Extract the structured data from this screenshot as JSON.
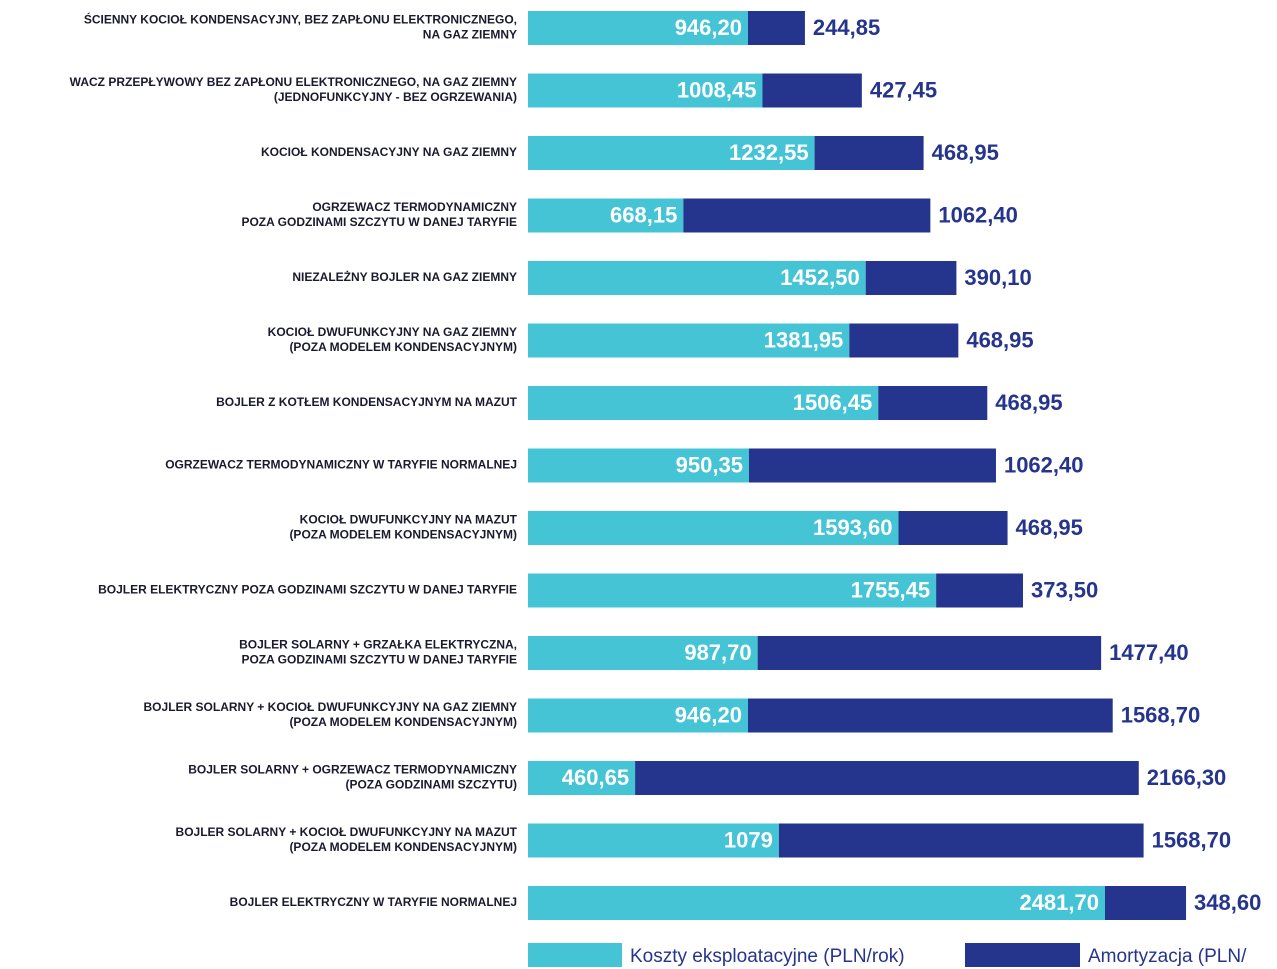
{
  "chart_data": {
    "type": "stacked_barh",
    "categories": [
      [
        "ŚCIENNY KOCIOŁ KONDENSACYJNY, BEZ ZAPŁONU ELEKTRONICZNEGO,",
        "NA GAZ ZIEMNY"
      ],
      [
        "WACZ PRZEPŁYWOWY BEZ ZAPŁONU ELEKTRONICZNEGO, NA GAZ ZIEMNY",
        "(JEDNOFUNKCYJNY - BEZ OGRZEWANIA)"
      ],
      [
        "KOCIOŁ KONDENSACYJNY NA GAZ ZIEMNY"
      ],
      [
        "OGRZEWACZ TERMODYNAMICZNY",
        "POZA GODZINAMI SZCZYTU W DANEJ TARYFIE"
      ],
      [
        "NIEZALEŻNY BOJLER NA GAZ ZIEMNY"
      ],
      [
        "KOCIOŁ DWUFUNKCYJNY NA GAZ ZIEMNY",
        "(POZA MODELEM KONDENSACYJNYM)"
      ],
      [
        "BOJLER Z KOTŁEM KONDENSACYJNYM NA MAZUT"
      ],
      [
        "OGRZEWACZ TERMODYNAMICZNY W TARYFIE NORMALNEJ"
      ],
      [
        "KOCIOŁ DWUFUNKCYJNY NA MAZUT",
        "(POZA MODELEM KONDENSACYJNYM)"
      ],
      [
        "BOJLER ELEKTRYCZNY POZA GODZINAMI SZCZYTU W DANEJ TARYFIE"
      ],
      [
        "BOJLER SOLARNY + GRZAŁKA ELEKTRYCZNA,",
        "POZA GODZINAMI SZCZYTU W DANEJ TARYFIE"
      ],
      [
        "BOJLER SOLARNY + KOCIOŁ DWUFUNKCYJNY NA GAZ ZIEMNY",
        "(POZA MODELEM KONDENSACYJNYM)"
      ],
      [
        "BOJLER SOLARNY + OGRZEWACZ TERMODYNAMICZNY",
        "(POZA GODZINAMI SZCZYTU)"
      ],
      [
        "BOJLER SOLARNY + KOCIOŁ DWUFUNKCYJNY NA MAZUT",
        "(POZA MODELEM KONDENSACYJNYM)"
      ],
      [
        "BOJLER ELEKTRYCZNY W TARYFIE NORMALNEJ"
      ]
    ],
    "series": [
      {
        "name": "Koszty eksploatacyjne  (PLN/rok)",
        "color": "#45c4d6",
        "values": [
          946.2,
          1008.45,
          1232.55,
          668.15,
          1452.5,
          1381.95,
          1506.45,
          950.35,
          1593.6,
          1755.45,
          987.7,
          946.2,
          460.65,
          1079,
          2481.7
        ],
        "value_labels": [
          "946,20",
          "1008,45",
          "1232,55",
          "668,15",
          "1452,50",
          "1381,95",
          "1506,45",
          "950,35",
          "1593,60",
          "1755,45",
          "987,70",
          "946,20",
          "460,65",
          "1079",
          "2481,70"
        ]
      },
      {
        "name": "Amortyzacja  (PLN/",
        "color": "#25348c",
        "values": [
          244.85,
          427.45,
          468.95,
          1062.4,
          390.1,
          468.95,
          468.95,
          1062.4,
          468.95,
          373.5,
          1477.4,
          1568.7,
          2166.3,
          1568.7,
          348.6
        ],
        "value_labels": [
          "244,85",
          "427,45",
          "468,95",
          "1062,40",
          "390,10",
          "468,95",
          "468,95",
          "1062,40",
          "468,95",
          "373,50",
          "1477,40",
          "1568,70",
          "2166,30",
          "1568,70",
          "348,60"
        ]
      }
    ]
  }
}
